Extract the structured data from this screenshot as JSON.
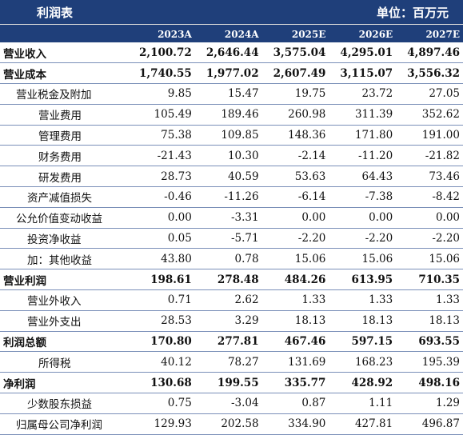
{
  "header": {
    "title": "利润表",
    "unit": "单位：百万元"
  },
  "columns": [
    "2023A",
    "2024A",
    "2025E",
    "2026E",
    "2027E"
  ],
  "rows": [
    {
      "label": "营业收入",
      "bold": true,
      "indent": 0,
      "values": [
        "2,100.72",
        "2,646.44",
        "3,575.04",
        "4,295.01",
        "4,897.46"
      ]
    },
    {
      "label": "营业成本",
      "bold": true,
      "indent": 0,
      "values": [
        "1,740.55",
        "1,977.02",
        "2,607.49",
        "3,115.07",
        "3,556.32"
      ]
    },
    {
      "label": "营业税金及附加",
      "bold": false,
      "indent": 1,
      "values": [
        "9.85",
        "15.47",
        "19.75",
        "23.72",
        "27.05"
      ]
    },
    {
      "label": "营业费用",
      "bold": false,
      "indent": 2,
      "values": [
        "105.49",
        "189.46",
        "260.98",
        "311.39",
        "352.62"
      ]
    },
    {
      "label": "管理费用",
      "bold": false,
      "indent": 2,
      "values": [
        "75.38",
        "109.85",
        "148.36",
        "171.80",
        "191.00"
      ]
    },
    {
      "label": "财务费用",
      "bold": false,
      "indent": 2,
      "values": [
        "-21.43",
        "10.30",
        "-2.14",
        "-11.20",
        "-21.82"
      ]
    },
    {
      "label": "研发费用",
      "bold": false,
      "indent": 2,
      "values": [
        "28.73",
        "40.59",
        "53.63",
        "64.43",
        "73.46"
      ]
    },
    {
      "label": "资产减值损失",
      "bold": false,
      "indent": 3,
      "values": [
        "-0.46",
        "-11.26",
        "-6.14",
        "-7.38",
        "-8.42"
      ]
    },
    {
      "label": "公允价值变动收益",
      "bold": false,
      "indent": 1,
      "values": [
        "0.00",
        "-3.31",
        "0.00",
        "0.00",
        "0.00"
      ]
    },
    {
      "label": "投资净收益",
      "bold": false,
      "indent": 3,
      "values": [
        "0.05",
        "-5.71",
        "-2.20",
        "-2.20",
        "-2.20"
      ]
    },
    {
      "label": "加：其他收益",
      "bold": false,
      "indent": 3,
      "values": [
        "43.80",
        "0.78",
        "15.06",
        "15.06",
        "15.06"
      ]
    },
    {
      "label": "营业利润",
      "bold": true,
      "indent": 0,
      "values": [
        "198.61",
        "278.48",
        "484.26",
        "613.95",
        "710.35"
      ]
    },
    {
      "label": "营业外收入",
      "bold": false,
      "indent": 3,
      "values": [
        "0.71",
        "2.62",
        "1.33",
        "1.33",
        "1.33"
      ]
    },
    {
      "label": "营业外支出",
      "bold": false,
      "indent": 3,
      "values": [
        "28.53",
        "3.29",
        "18.13",
        "18.13",
        "18.13"
      ]
    },
    {
      "label": "利润总额",
      "bold": true,
      "indent": 0,
      "values": [
        "170.80",
        "277.81",
        "467.46",
        "597.15",
        "693.55"
      ]
    },
    {
      "label": "所得税",
      "bold": false,
      "indent": 2,
      "values": [
        "40.12",
        "78.27",
        "131.69",
        "168.23",
        "195.39"
      ]
    },
    {
      "label": "净利润",
      "bold": true,
      "indent": 0,
      "values": [
        "130.68",
        "199.55",
        "335.77",
        "428.92",
        "498.16"
      ]
    },
    {
      "label": "少数股东损益",
      "bold": false,
      "indent": 3,
      "values": [
        "0.75",
        "-3.04",
        "0.87",
        "1.11",
        "1.29"
      ]
    },
    {
      "label": "归属母公司净利润",
      "bold": false,
      "indent": 1,
      "values": [
        "129.93",
        "202.58",
        "334.90",
        "427.81",
        "496.87"
      ]
    }
  ],
  "colors": {
    "header_bg": "#1f3f7a",
    "header_text": "#ffffff",
    "row_border": "#7a8fb8"
  }
}
